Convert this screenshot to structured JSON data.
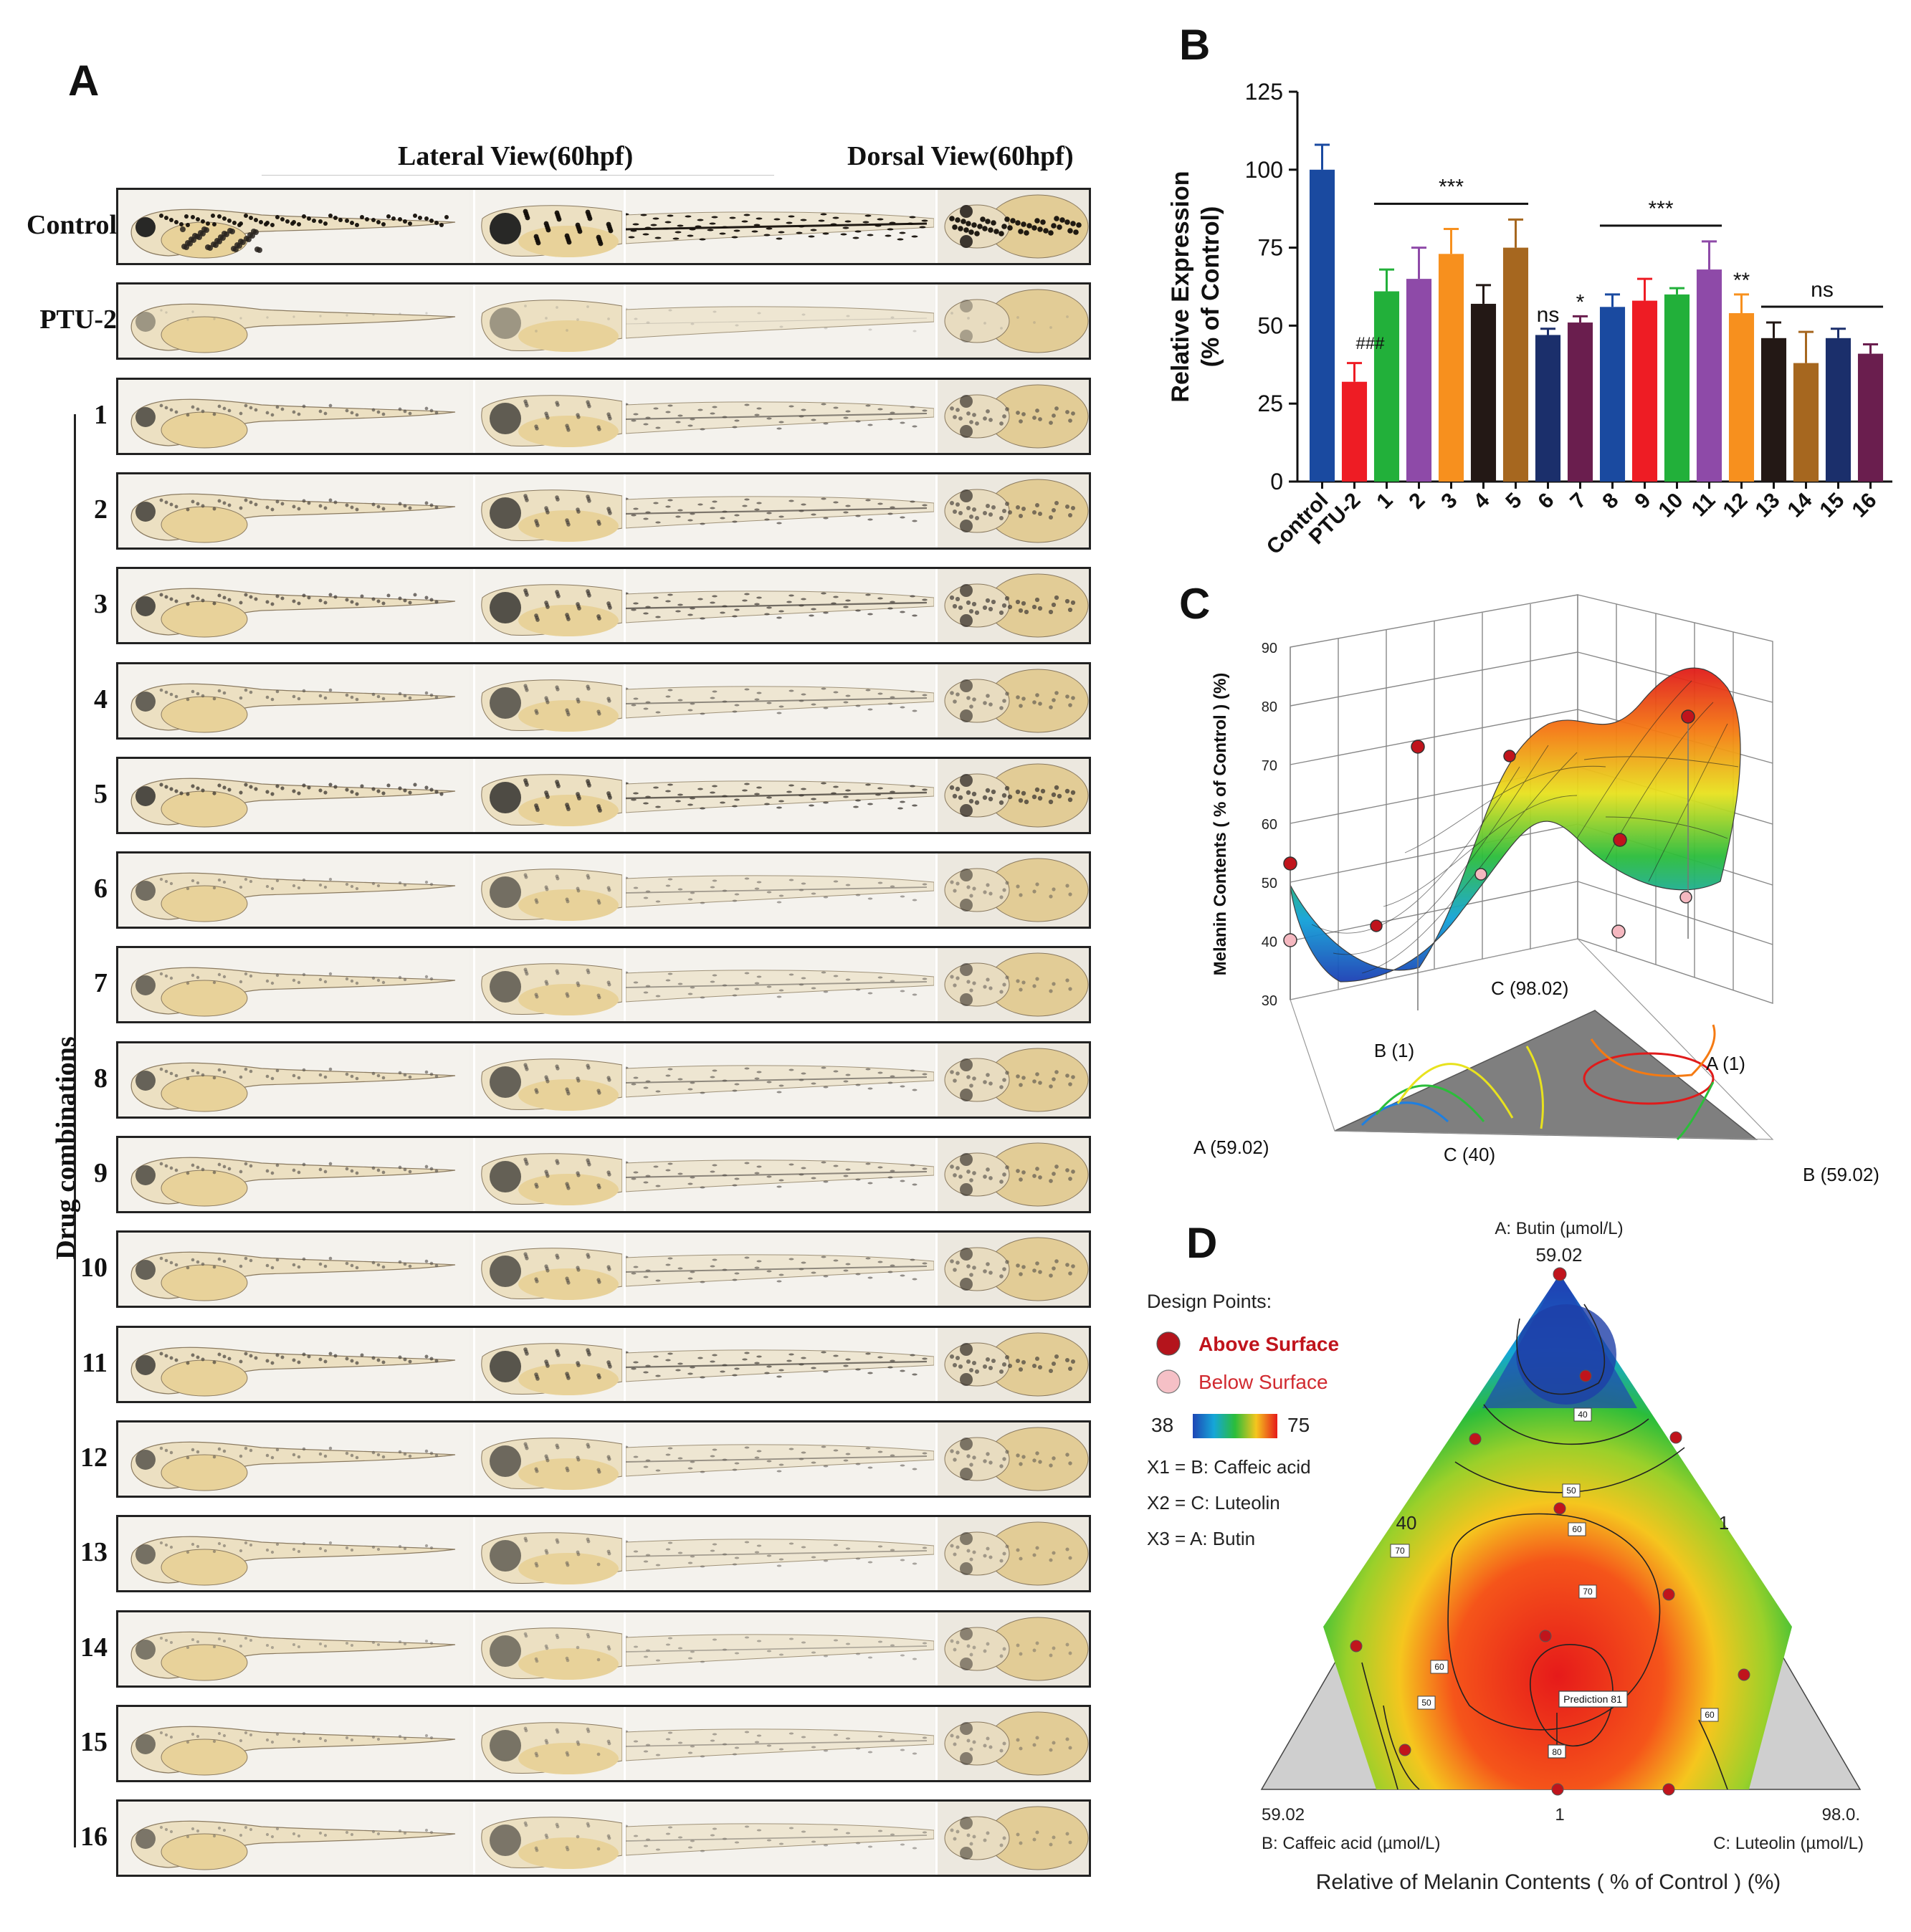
{
  "panel_labels": {
    "a": "A",
    "b": "B",
    "c": "C",
    "d": "D"
  },
  "panel_a": {
    "lateral_title": "Lateral View(60hpf)",
    "dorsal_title": "Dorsal View(60hpf)",
    "side_label": "Drug combinations",
    "rows": [
      {
        "label": "Control",
        "pigment": 1.0
      },
      {
        "label": "PTU-2",
        "pigment": 0.05
      },
      {
        "label": "1",
        "pigment": 0.55
      },
      {
        "label": "2",
        "pigment": 0.6
      },
      {
        "label": "3",
        "pigment": 0.65
      },
      {
        "label": "4",
        "pigment": 0.5
      },
      {
        "label": "5",
        "pigment": 0.7
      },
      {
        "label": "6",
        "pigment": 0.4
      },
      {
        "label": "7",
        "pigment": 0.42
      },
      {
        "label": "8",
        "pigment": 0.5
      },
      {
        "label": "9",
        "pigment": 0.52
      },
      {
        "label": "10",
        "pigment": 0.5
      },
      {
        "label": "11",
        "pigment": 0.62
      },
      {
        "label": "12",
        "pigment": 0.45
      },
      {
        "label": "13",
        "pigment": 0.38
      },
      {
        "label": "14",
        "pigment": 0.32
      },
      {
        "label": "15",
        "pigment": 0.36
      },
      {
        "label": "16",
        "pigment": 0.34
      }
    ]
  },
  "chart_data": [
    {
      "type": "bar",
      "panel": "B",
      "title": "",
      "xlabel": "",
      "ylabel": "Relative Expression (% of Control)",
      "ylim": [
        0,
        125
      ],
      "yticks": [
        0,
        25,
        50,
        75,
        100,
        125
      ],
      "categories": [
        "Control",
        "PTU-2",
        "1",
        "2",
        "3",
        "4",
        "5",
        "6",
        "7",
        "8",
        "9",
        "10",
        "11",
        "12",
        "13",
        "14",
        "15",
        "16"
      ],
      "values": [
        100,
        32,
        61,
        65,
        73,
        57,
        75,
        47,
        51,
        56,
        58,
        60,
        68,
        54,
        46,
        38,
        46,
        41
      ],
      "errors": [
        8,
        6,
        7,
        10,
        8,
        6,
        9,
        2,
        2,
        4,
        7,
        2,
        9,
        6,
        5,
        10,
        3,
        3
      ],
      "colors": [
        "#1a4aa0",
        "#ee1c24",
        "#22b03a",
        "#8e4aa8",
        "#f7901e",
        "#231815",
        "#a6671f",
        "#1b2f6b",
        "#6a1e4e",
        "#1a4aa0",
        "#ee1c24",
        "#22b03a",
        "#8e4aa8",
        "#f7901e",
        "#231815",
        "#a6671f",
        "#1b2f6b",
        "#6a1e4e"
      ],
      "annotations": [
        {
          "text": "###",
          "category": "PTU-2"
        },
        {
          "text": "***",
          "from": "1",
          "to": "5"
        },
        {
          "text": "ns",
          "category": "6"
        },
        {
          "text": "*",
          "category": "7"
        },
        {
          "text": "***",
          "from": "8",
          "to": "11"
        },
        {
          "text": "**",
          "category": "12"
        },
        {
          "text": "ns",
          "from": "13",
          "to": "16"
        }
      ]
    },
    {
      "type": "surface",
      "panel": "C",
      "zlabel": "Melanin Contents ( % of Control ) (%)",
      "zlim": [
        30,
        90
      ],
      "zticks": [
        30,
        40,
        50,
        60,
        70,
        80,
        90
      ],
      "axis_labels": [
        "C (98.02)",
        "B (1)",
        "A (1)",
        "A (59.02)",
        "C (40)",
        "B (59.02)"
      ],
      "color_range": [
        38,
        75
      ]
    },
    {
      "type": "ternary-contour",
      "panel": "D",
      "top_axis": "A: Butin (µmol/L)",
      "top_value": "59.02",
      "left_axis": "B: Caffeic acid (µmol/L)",
      "right_axis": "C: Luteolin (µmol/L)",
      "edge_values": {
        "left_mid": "40",
        "right_mid": "1",
        "bottom_left": "59.02",
        "bottom_mid": "1",
        "bottom_right": "98.0."
      },
      "xlabel": "Relative of Melanin Contents ( % of Control ) (%)",
      "contour_labels": [
        "40",
        "50",
        "60",
        "70",
        "80",
        "60",
        "50",
        "60"
      ],
      "prediction_label": "Prediction 81",
      "legend": {
        "title": "Design Points:",
        "above": "Above Surface",
        "below": "Below Surface",
        "scale_min": "38",
        "scale_max": "75",
        "x1": "X1 = B: Caffeic acid",
        "x2": "X2 = C: Luteolin",
        "x3": "X3 = A: Butin"
      }
    }
  ]
}
